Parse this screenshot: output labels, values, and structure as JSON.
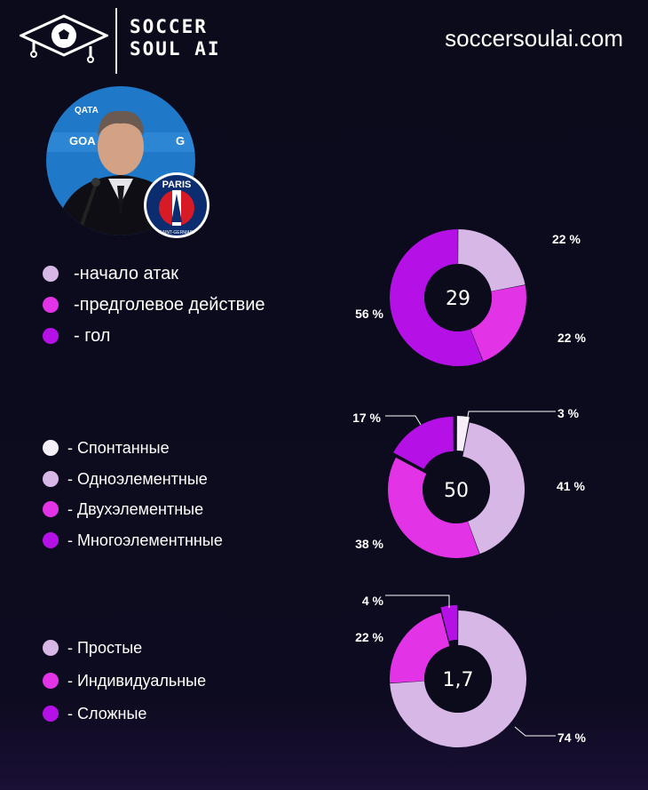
{
  "header": {
    "brand_line1": "SOCCER",
    "brand_line2": "SOUL AI",
    "site": "soccersoulai.com"
  },
  "badge": {
    "text_top": "PARIS",
    "text_bottom": "SAINT-GERMAIN"
  },
  "colors": {
    "background": "#0c0b1c",
    "light_lavender": "#d7b7e6",
    "magenta": "#e234e6",
    "purple": "#b511e6",
    "white": "#f6eef9"
  },
  "chart_data": [
    {
      "type": "pie",
      "center": "29",
      "labels": [
        "-начало атак",
        "-предголевое действие",
        "- гол"
      ],
      "values": [
        22,
        22,
        56
      ],
      "value_labels": [
        "22 %",
        "22 %",
        "56 %"
      ],
      "colors": [
        "#d7b7e6",
        "#e234e6",
        "#b511e6"
      ],
      "exploded": []
    },
    {
      "type": "pie",
      "center": "50",
      "labels": [
        "- Спонтанные",
        "- Одноэлементные",
        "- Двухэлементные",
        "- Многоэлементнные"
      ],
      "values": [
        3,
        41,
        38,
        17
      ],
      "value_labels": [
        "3 %",
        "41 %",
        "38 %",
        "17 %"
      ],
      "colors": [
        "#f6eef9",
        "#d7b7e6",
        "#e234e6",
        "#b511e6"
      ],
      "exploded": [
        0,
        3
      ]
    },
    {
      "type": "pie",
      "center": "1,7",
      "labels": [
        "- Простые",
        "- Индивидуальные",
        "- Сложные"
      ],
      "values": [
        74,
        22,
        4
      ],
      "value_labels": [
        "74 %",
        "22 %",
        "4 %"
      ],
      "colors": [
        "#d7b7e6",
        "#e234e6",
        "#b511e6"
      ],
      "exploded": [
        2
      ]
    }
  ]
}
